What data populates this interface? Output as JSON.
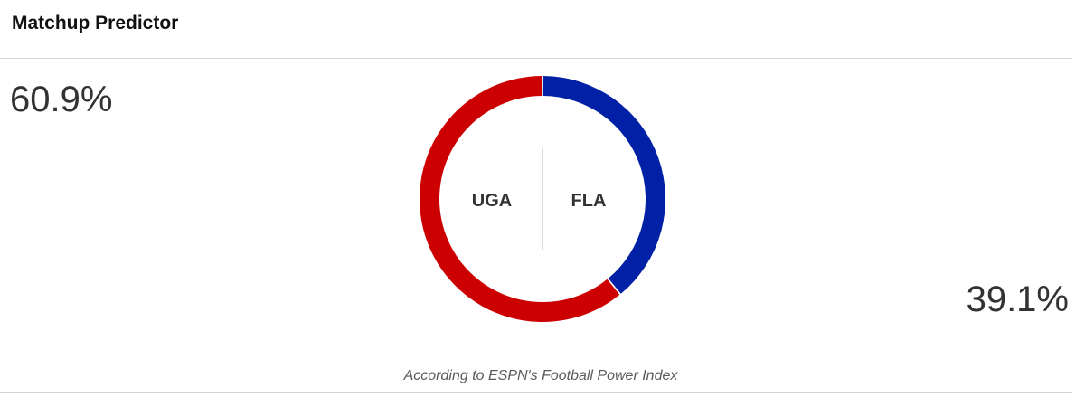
{
  "header": {
    "title": "Matchup Predictor"
  },
  "teams": {
    "home": {
      "abbr": "UGA",
      "percent_label": "60.9%",
      "color": "#cc0000"
    },
    "away": {
      "abbr": "FLA",
      "percent_label": "39.1%",
      "color": "#0021a5"
    }
  },
  "footnote": "According to ESPN's Football Power Index",
  "chart_data": {
    "type": "pie",
    "variant": "donut",
    "categories": [
      "FLA",
      "UGA"
    ],
    "values": [
      39.1,
      60.9
    ],
    "colors": [
      "#0021a5",
      "#cc0000"
    ],
    "title": "Matchup Predictor"
  }
}
